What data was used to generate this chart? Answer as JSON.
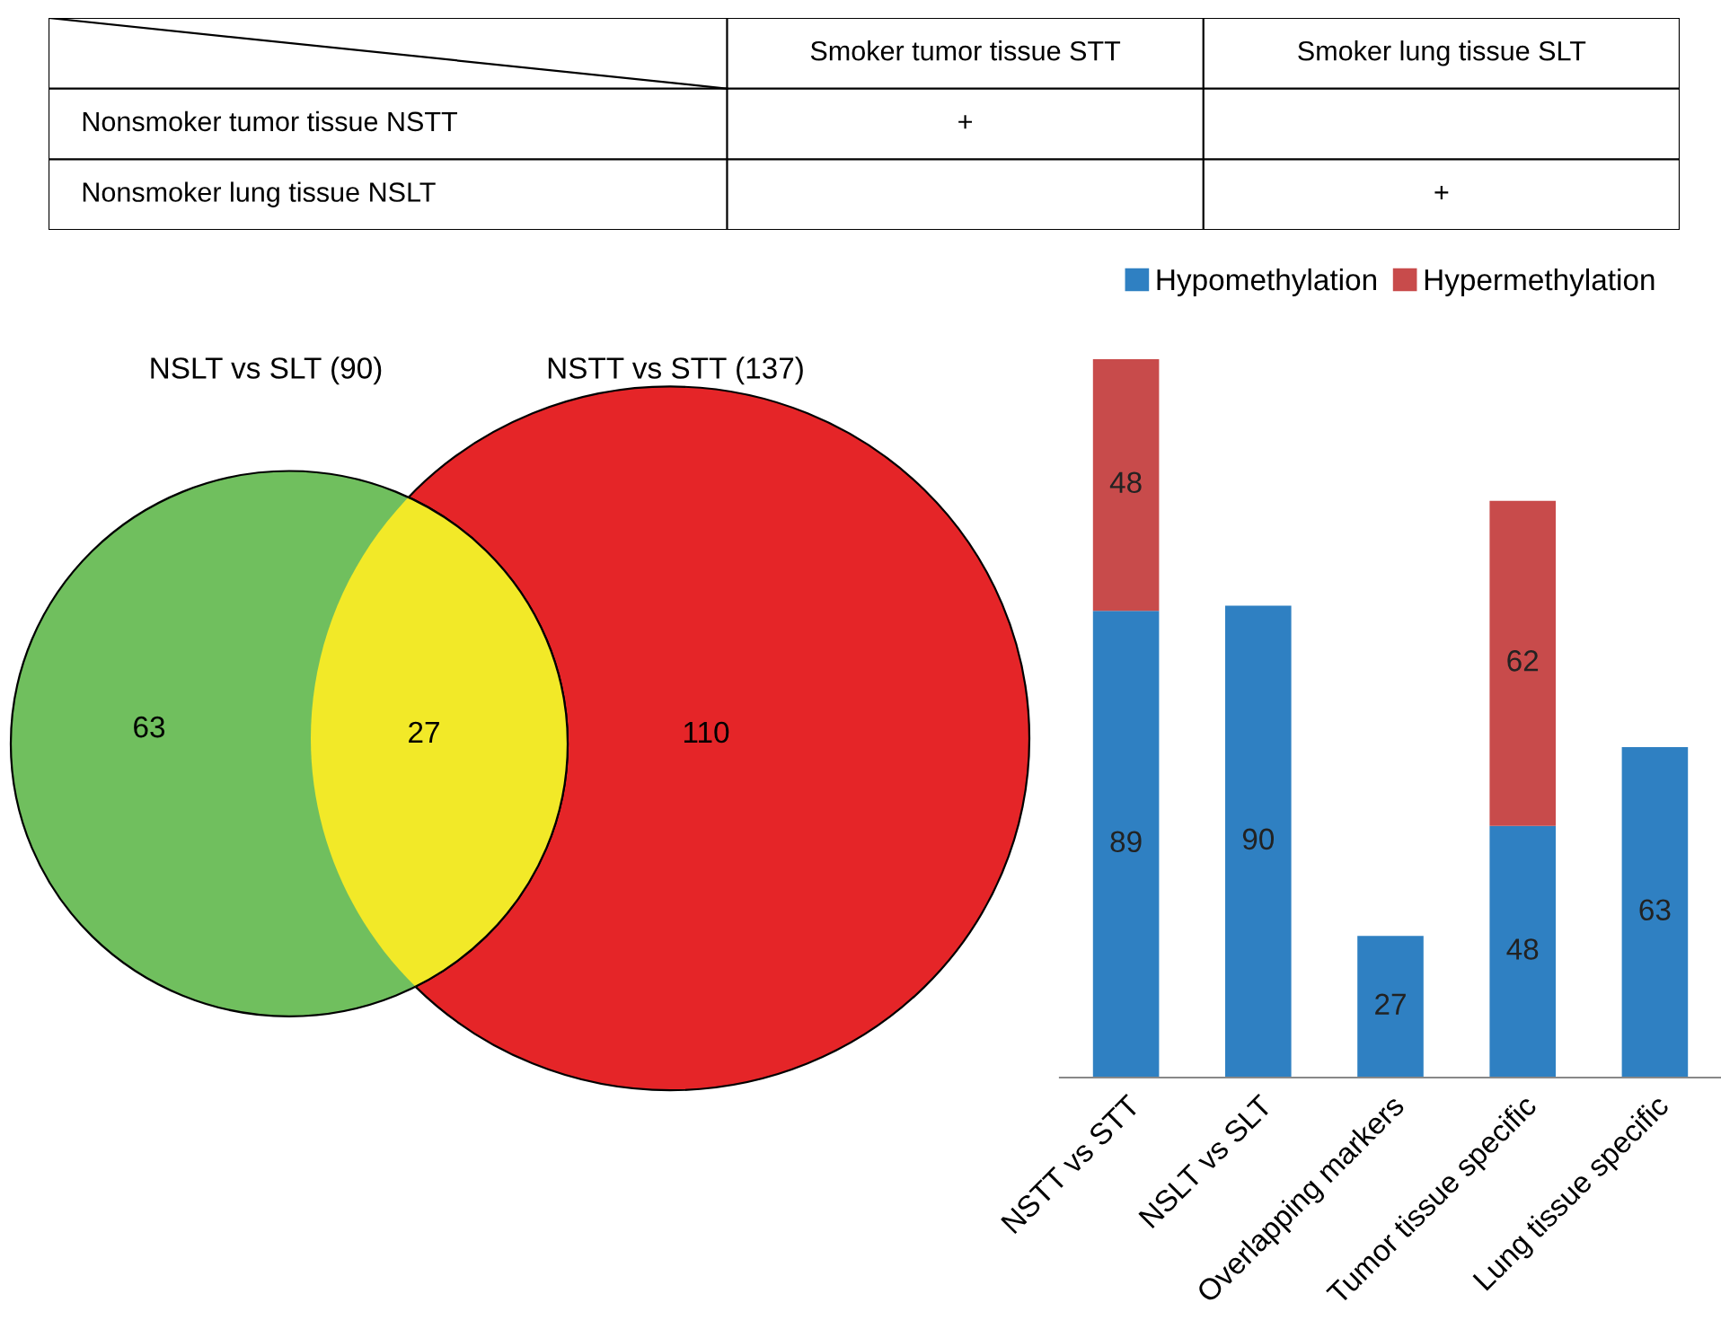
{
  "chart_data": [
    {
      "type": "other",
      "categories": [
        "Smoker tumor tissue STT",
        "Smoker lung tissue SLT"
      ],
      "y_categories": [
        "Nonsmoker tumor tissue NSTT",
        "Nonsmoker lung tissue NSLT"
      ],
      "cell_labels": [
        [
          "+",
          null
        ],
        [
          null,
          "+"
        ]
      ]
    },
    {
      "type": "other",
      "values": [
        63,
        27,
        110
      ],
      "colors": [
        "#70bf5e",
        "#f2e928",
        "#e52528"
      ],
      "data_labels": true,
      "annotations": [
        "NSLT vs SLT (90)",
        "NSTT vs STT (137)"
      ]
    },
    {
      "type": "bar",
      "stacked": true,
      "legend": "top",
      "data_labels": true,
      "tick_labels": "x",
      "categories": [
        "NSTT vs STT",
        "NSLT vs SLT",
        "Overlapping markers",
        "Tumor tissue specific",
        "Lung tissue specific"
      ],
      "series": [
        {
          "name": "Hypomethylation",
          "color": "#2f80c2",
          "values": [
            89,
            90,
            27,
            48,
            63
          ]
        },
        {
          "name": "Hypermethylation",
          "color": "#c84b4b",
          "values": [
            48,
            null,
            null,
            62,
            null
          ]
        }
      ]
    }
  ]
}
